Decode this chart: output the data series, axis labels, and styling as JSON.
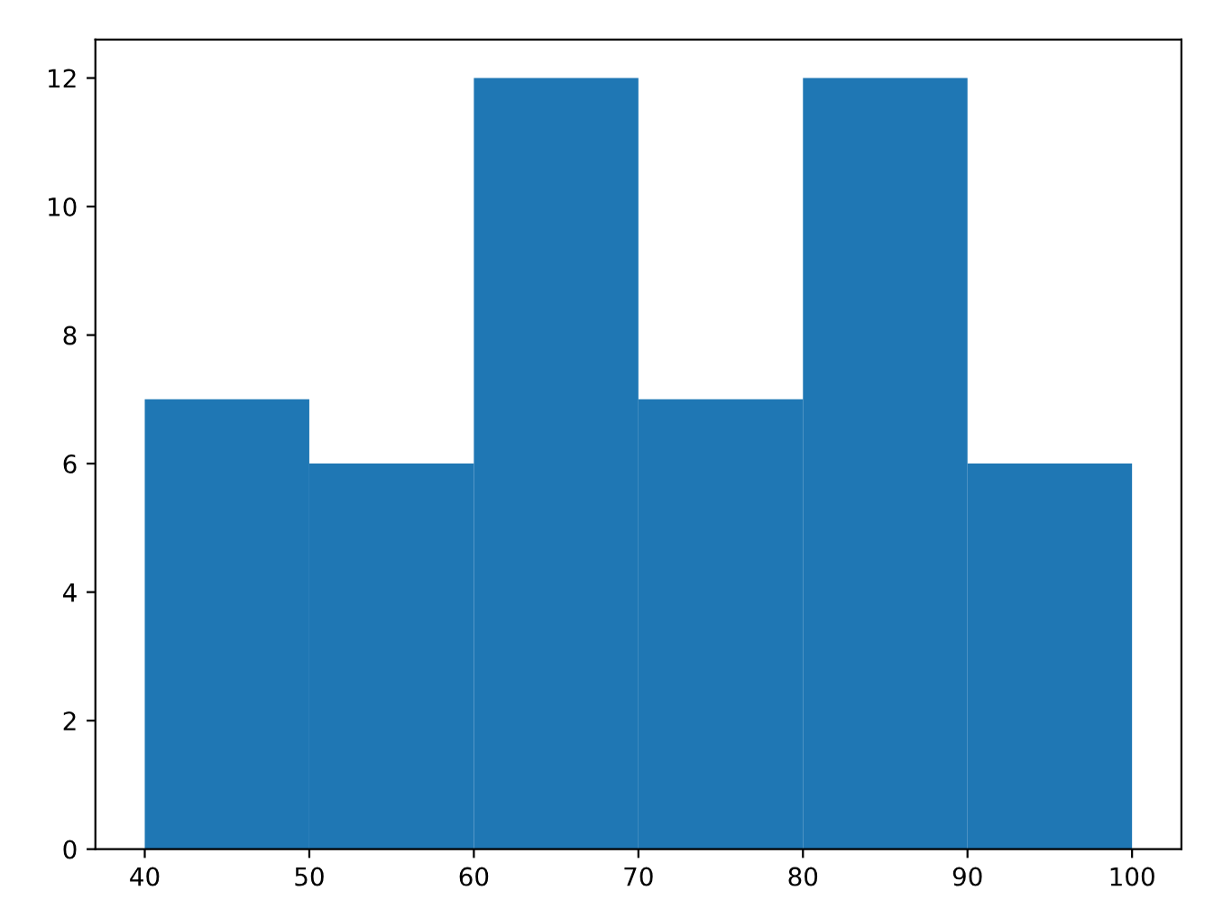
{
  "chart_data": {
    "type": "histogram",
    "bins": [
      40,
      50,
      60,
      70,
      80,
      90,
      100
    ],
    "values": [
      7,
      6,
      12,
      7,
      12,
      6
    ],
    "color": "#1f77b4",
    "xlim": [
      37,
      103
    ],
    "ylim": [
      0,
      12.6
    ],
    "xticks": [
      40,
      50,
      60,
      70,
      80,
      90,
      100
    ],
    "yticks": [
      0,
      2,
      4,
      6,
      8,
      10,
      12
    ]
  }
}
